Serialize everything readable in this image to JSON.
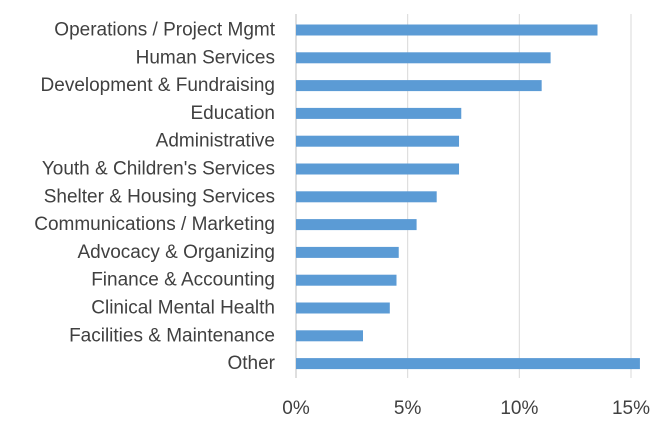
{
  "chart_data": {
    "type": "bar",
    "orientation": "horizontal",
    "categories": [
      "Operations / Project Mgmt",
      "Human Services",
      "Development & Fundraising",
      "Education",
      "Administrative",
      "Youth & Children's Services",
      "Shelter & Housing Services",
      "Communications / Marketing",
      "Advocacy & Organizing",
      "Finance & Accounting",
      "Clinical Mental Health",
      "Facilities & Maintenance",
      "Other"
    ],
    "values": [
      13.5,
      11.4,
      11.0,
      7.4,
      7.3,
      7.3,
      6.3,
      5.4,
      4.6,
      4.5,
      4.2,
      3.0,
      15.4
    ],
    "xlim": [
      0,
      15
    ],
    "xticks": [
      0,
      5,
      10,
      15
    ],
    "xtick_labels": [
      "0%",
      "5%",
      "10%",
      "15%"
    ],
    "grid": true,
    "bar_color": "#5b9bd5",
    "title": "",
    "xlabel": "",
    "ylabel": ""
  }
}
